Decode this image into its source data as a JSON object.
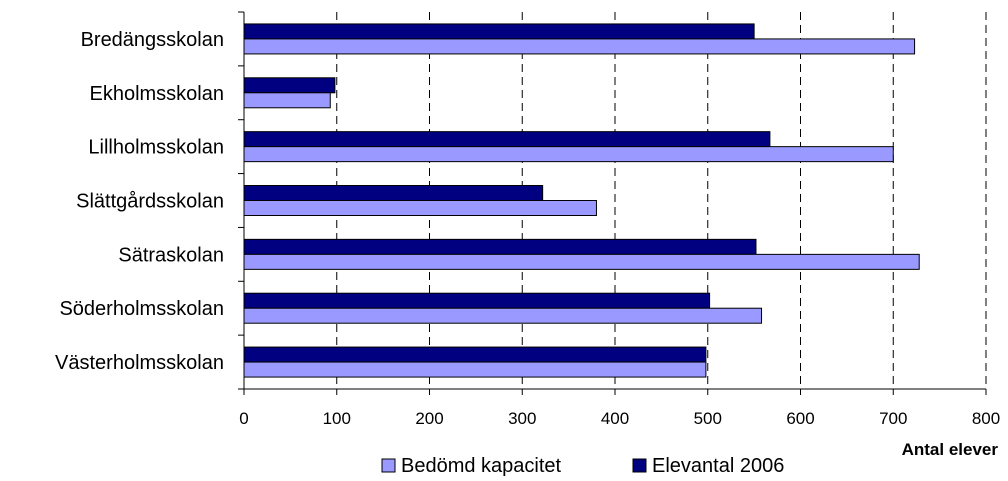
{
  "chart_data": {
    "type": "bar",
    "orientation": "horizontal",
    "categories": [
      "Bredängsskolan",
      "Ekholmsskolan",
      "Lillholmsskolan",
      "Slättgårdsskolan",
      "Sätraskolan",
      "Söderholmsskolan",
      "Västerholmsskolan"
    ],
    "series": [
      {
        "name": "Elevantal 2006",
        "color": "#000080",
        "values": [
          550,
          98,
          567,
          322,
          552,
          502,
          498
        ]
      },
      {
        "name": "Bedömd kapacitet",
        "color": "#9999ff",
        "values": [
          723,
          93,
          700,
          380,
          728,
          558,
          498
        ]
      }
    ],
    "legend_order": [
      "Bedömd kapacitet",
      "Elevantal 2006"
    ],
    "xlabel": "Antal elever",
    "xlim": [
      0,
      800
    ],
    "xticks": [
      "0",
      "100",
      "200",
      "300",
      "400",
      "500",
      "600",
      "700",
      "800"
    ],
    "grid": "vertical dashed",
    "legend_position": "bottom"
  }
}
